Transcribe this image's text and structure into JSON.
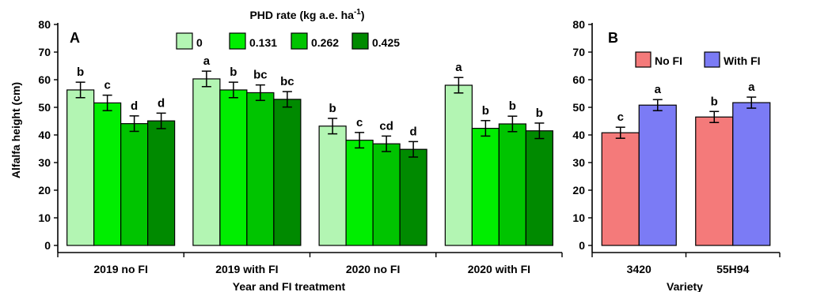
{
  "chart_data": [
    {
      "panel": "A",
      "type": "bar",
      "ylabel": "Alfalfa height (cm)",
      "xlabel": "Year and FI treatment",
      "ylim": [
        0,
        80
      ],
      "yticks": [
        0,
        10,
        20,
        30,
        40,
        50,
        60,
        70,
        80
      ],
      "legend_title": "PHD rate (kg a.e. ha",
      "legend_title_sup": "-1",
      "legend_title_end": ")",
      "legend_position": "top",
      "categories": [
        "2019 no FI",
        "2019 with FI",
        "2020 no FI",
        "2020 with FI"
      ],
      "series": [
        {
          "name": "0",
          "color": "#b3f5b3",
          "values": [
            56.3,
            60.3,
            43.2,
            58.0
          ],
          "errors": [
            2.8,
            2.8,
            2.8,
            2.8
          ],
          "letters": [
            "b",
            "a",
            "b",
            "a"
          ]
        },
        {
          "name": "0.131",
          "color": "#00ee00",
          "values": [
            51.6,
            56.3,
            38.1,
            42.4
          ],
          "errors": [
            2.8,
            2.8,
            2.8,
            2.8
          ],
          "letters": [
            "c",
            "b",
            "c",
            "b"
          ]
        },
        {
          "name": "0.262",
          "color": "#00c400",
          "values": [
            44.1,
            55.3,
            36.8,
            44.0
          ],
          "errors": [
            2.8,
            2.8,
            2.8,
            2.8
          ],
          "letters": [
            "d",
            "bc",
            "cd",
            "b"
          ]
        },
        {
          "name": "0.425",
          "color": "#008a00",
          "values": [
            45.1,
            52.9,
            34.8,
            41.5
          ],
          "errors": [
            2.8,
            2.8,
            2.8,
            2.8
          ],
          "letters": [
            "d",
            "bc",
            "d",
            "b"
          ]
        }
      ]
    },
    {
      "panel": "B",
      "type": "bar",
      "ylabel": "",
      "xlabel": "Variety",
      "ylim": [
        0,
        80
      ],
      "yticks": [
        0,
        10,
        20,
        30,
        40,
        50,
        60,
        70,
        80
      ],
      "legend_position": "top-left",
      "categories": [
        "3420",
        "55H94"
      ],
      "series": [
        {
          "name": "No FI",
          "color": "#f47a7a",
          "values": [
            40.8,
            46.5
          ],
          "errors": [
            2.0,
            2.0
          ],
          "letters": [
            "c",
            "b"
          ]
        },
        {
          "name": "With FI",
          "color": "#7b7bf5",
          "values": [
            50.8,
            51.7
          ],
          "errors": [
            2.0,
            2.0
          ],
          "letters": [
            "a",
            "a"
          ]
        }
      ]
    }
  ]
}
